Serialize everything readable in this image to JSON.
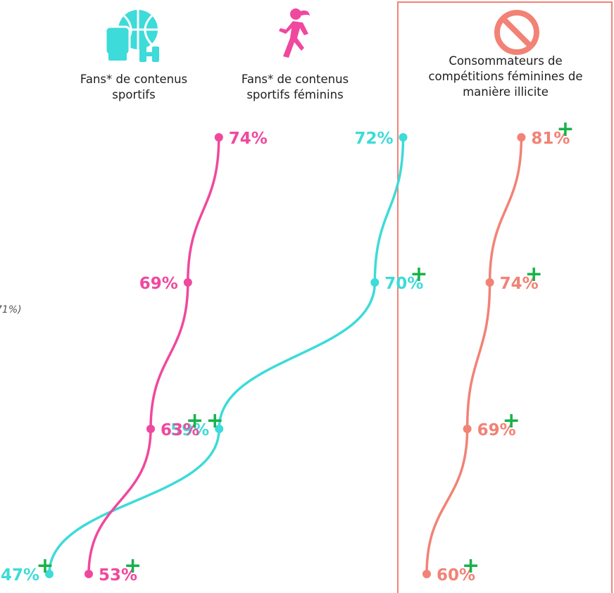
{
  "colors": {
    "teal": "#3ddbd9",
    "pink": "#f0489e",
    "coral": "#f28276",
    "plus_green": "#17b24a"
  },
  "icons": {
    "sports_fans": "sports-equipment-icon",
    "womens_sports_fans": "running-woman-icon",
    "illicit_consumers": "prohibited-icon"
  },
  "side_note": "71%)",
  "chart_data": {
    "type": "line",
    "categories": [
      "",
      "",
      "",
      ""
    ],
    "series": [
      {
        "name": "Fans* de contenus sportifs",
        "values": [
          72,
          70,
          59,
          47
        ],
        "labels": [
          "72%",
          "70%",
          "59%",
          "47%"
        ],
        "plus": [
          false,
          true,
          true,
          true
        ],
        "color": "#3ddbd9"
      },
      {
        "name": "Fans* de contenus sportifs féminins",
        "values": [
          74,
          69,
          63,
          53
        ],
        "labels": [
          "74%",
          "69%",
          "63%",
          "53%"
        ],
        "plus": [
          false,
          false,
          true,
          true
        ],
        "color": "#f0489e"
      },
      {
        "name": "Consommateurs de compétitions féminines de manière illicite",
        "values": [
          81,
          74,
          69,
          60
        ],
        "labels": [
          "81%",
          "74%",
          "69%",
          "60%"
        ],
        "plus": [
          true,
          true,
          true,
          true
        ],
        "color": "#f28276"
      }
    ],
    "plus_symbol": "+",
    "title": "",
    "xlabel": "",
    "ylabel": "",
    "grid": false,
    "legend": "top"
  }
}
